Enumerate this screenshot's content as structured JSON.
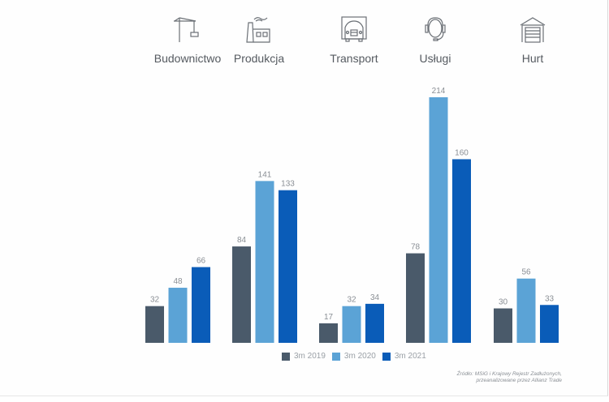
{
  "categories_header": [
    {
      "label": "Budownictwo",
      "icon": "crane-icon"
    },
    {
      "label": "Produkcja",
      "icon": "factory-icon"
    },
    {
      "label": "Transport",
      "icon": "truck-icon"
    },
    {
      "label": "Usługi",
      "icon": "headset-icon"
    },
    {
      "label": "Hurt",
      "icon": "warehouse-icon"
    }
  ],
  "legend": [
    {
      "label": "3m 2019",
      "color": "#4a5a6a"
    },
    {
      "label": "3m 2020",
      "color": "#5ba3d6"
    },
    {
      "label": "3m 2021",
      "color": "#0a5cb8"
    }
  ],
  "source": "Źródło: MSiG i Krajowy Rejestr Zadłużonych, przeanalizowane przez Allianz Trade",
  "chart_data": {
    "type": "bar",
    "title": "",
    "xlabel": "",
    "ylabel": "",
    "categories": [
      "Budownictwo",
      "Produkcja",
      "Transport",
      "Usługi",
      "Hurt"
    ],
    "series": [
      {
        "name": "3m 2019",
        "color": "#4a5a6a",
        "values": [
          32,
          84,
          17,
          78,
          30
        ]
      },
      {
        "name": "3m 2020",
        "color": "#5ba3d6",
        "values": [
          48,
          141,
          32,
          214,
          56
        ]
      },
      {
        "name": "3m 2021",
        "color": "#0a5cb8",
        "values": [
          66,
          133,
          34,
          160,
          33
        ]
      }
    ],
    "ylim": [
      0,
      214
    ],
    "grid": false,
    "legend_position": "bottom",
    "data_labels": true
  }
}
